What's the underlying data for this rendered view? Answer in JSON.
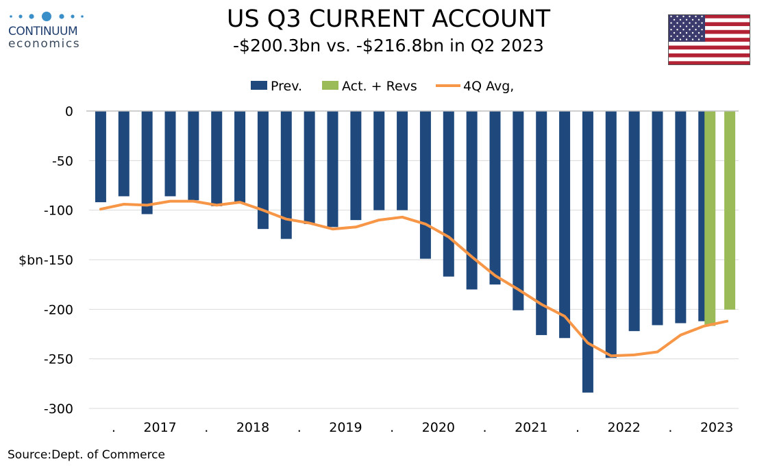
{
  "logo": {
    "word1": "CONTINUUM",
    "word2": "economics"
  },
  "flag_icon": "us-flag-icon",
  "colors": {
    "prev": "#1f497d",
    "act": "#9bbb59",
    "avg": "#f79646",
    "grid": "#d9d9d9",
    "axis": "#bfbfbf"
  },
  "source": "Source:Dept. of Commerce",
  "chart_data": {
    "type": "bar",
    "title": "US Q3 CURRENT ACCOUNT",
    "subtitle": "-$200.3bn vs. -$216.8bn in Q2 2023",
    "ylabel": "$bn",
    "ylim": [
      -300,
      0
    ],
    "yticks": [
      0,
      -50,
      -100,
      -150,
      -200,
      -250,
      -300
    ],
    "grid": true,
    "legend_position": "top-center",
    "legend": [
      "Prev.",
      "Act. + Revs",
      "4Q Avg,"
    ],
    "x_labels": [
      ".",
      "2017",
      ".",
      "2018",
      ".",
      "2019",
      ".",
      "2020",
      ".",
      "2021",
      ".",
      "2022",
      ".",
      "2023"
    ],
    "series": [
      {
        "name": "Prev.",
        "type": "bar",
        "values": [
          -92,
          -86,
          -104,
          -86,
          -90,
          -96,
          -93,
          -119,
          -129,
          -114,
          -117,
          -110,
          -100,
          -100,
          -149,
          -167,
          -180,
          -175,
          -201,
          -226,
          -229,
          -284,
          -249,
          -222,
          -216,
          -214,
          -212,
          null
        ]
      },
      {
        "name": "Act. + Revs",
        "type": "bar",
        "values": [
          -216.8,
          -200.3
        ]
      },
      {
        "name": "4Q Avg,",
        "type": "line",
        "values": [
          -99,
          -94,
          -95,
          -91,
          -91,
          -95,
          -92,
          -100,
          -109,
          -113,
          -119,
          -117,
          -110,
          -107,
          -114,
          -127,
          -147,
          -166,
          -180,
          -195,
          -207,
          -234,
          -247,
          -246,
          -243,
          -226,
          -217,
          -212
        ]
      }
    ]
  }
}
